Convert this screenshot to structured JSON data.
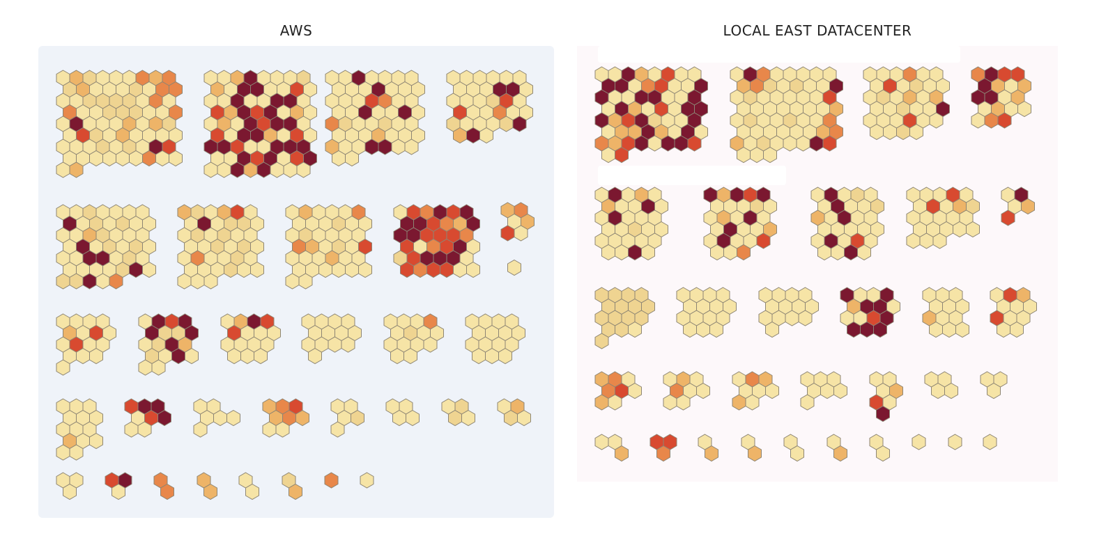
{
  "chart_data": [
    {
      "type": "heatmap",
      "title": "AWS",
      "palette": [
        "#f6e4a6",
        "#efd491",
        "#eeb468",
        "#e8874a",
        "#d84a30",
        "#7b1830"
      ],
      "clusters": [
        [
          "021000323",
          "120001033",
          "001111030",
          "300111003",
          "050002021",
          "041020000",
          "000101054",
          "000000300",
          "02"
        ],
        [
          "00250001",
          "20550040",
          "00500550",
          "42545020",
          "02054550",
          "40552040",
          "55400555",
          "00545045",
          "00525000"
        ],
        [
          "0050000",
          "0005000",
          "0004300",
          "0050050",
          "3100100",
          "0002000",
          "2005500",
          "00"
        ],
        [
          "000000",
          "000550",
          "000140",
          "400300",
          "100015",
          "250"
        ],
        [
          "0010000",
          "5010100",
          "0021000",
          "0501010",
          "0055010",
          "0000150",
          "11503"
        ],
        [
          "210240",
          "050110",
          "010100",
          "001010",
          "030010",
          "000100",
          "000"
        ],
        [
          "020003",
          "000100",
          "010000",
          "320104",
          "000200",
          "000000",
          "00"
        ],
        [
          "043545",
          "554325",
          "554443",
          "403450",
          "145550",
          "434400"
        ],
        [
          "23",
          "02",
          "40",
          "..",
          "..",
          "0"
        ],
        [
          "0000",
          "2040",
          "0400",
          "000",
          "0"
        ],
        [
          "0545",
          "5115",
          "0152",
          "1050",
          "00"
        ],
        [
          "0254",
          "4000",
          "0000",
          "000"
        ],
        [
          "0000",
          "0000",
          "0000",
          "0"
        ],
        [
          "0003",
          "0100",
          "0000",
          "00"
        ],
        [
          "0000",
          "0000",
          "0000",
          "000"
        ],
        [
          "000",
          "000",
          "000",
          "200",
          "00"
        ],
        [
          "455",
          "045",
          "00"
        ],
        [
          "00",
          "000",
          "0"
        ],
        [
          "234",
          "232",
          "00"
        ],
        [
          "00",
          "01",
          "0"
        ],
        [
          "00",
          "00"
        ],
        [
          "01",
          "10"
        ],
        [
          "02",
          "10"
        ],
        [
          "00",
          "0"
        ],
        [
          "45",
          "0"
        ],
        [
          "3",
          "3"
        ],
        [
          "2",
          "2"
        ],
        [
          "0",
          "0"
        ],
        [
          "1",
          "2"
        ],
        [
          "3"
        ],
        [
          "0"
        ]
      ]
    },
    {
      "type": "heatmap",
      "title": "LOCAL EAST DATACENTER",
      "palette": [
        "#f6e4a6",
        "#efd491",
        "#eeb468",
        "#e8874a",
        "#d84a30",
        "#7b1830"
      ],
      "clusters": [
        [
          "00520400",
          "55034005",
          "50055005",
          "05204055",
          "52451005",
          "02252050",
          "32450554",
          "04"
        ],
        [
          "05300000",
          "23101005",
          "01000004",
          "00000002",
          "01001003",
          "00000023",
          "20100054",
          "000"
        ],
        [
          "000300",
          "040100",
          "010202",
          "001005",
          "000400",
          "0010"
        ],
        [
          "3544",
          "5202",
          "5502",
          "0200",
          "034"
        ],
        [
          "05020",
          "20050",
          "05000",
          "00100",
          "00000",
          "0050"
        ],
        [
          "52545",
          "00010",
          "02050",
          "05002",
          "05004",
          "003"
        ],
        [
          "05010",
          "05001",
          "20500",
          "00000",
          "05040",
          "0050"
        ],
        [
          "00040",
          "04021",
          "00000",
          "00000",
          "000"
        ],
        [
          "05",
          "02",
          "4"
        ],
        [
          "1111",
          "1111",
          "1111",
          "110",
          "1"
        ],
        [
          "0000",
          "0000",
          "0000",
          "000"
        ],
        [
          "0000",
          "0000",
          "0000",
          "0"
        ],
        [
          "5005",
          "2550",
          "0045",
          "555"
        ],
        [
          "000",
          "000",
          "200",
          "000"
        ],
        [
          "042",
          "000",
          "400",
          "00"
        ],
        [
          "230",
          "340",
          "20"
        ],
        [
          "020",
          "300",
          "00"
        ],
        [
          "032",
          "000",
          "20"
        ],
        [
          "000",
          "000",
          "0"
        ],
        [
          "00",
          "02",
          "40",
          "5"
        ],
        [
          "00",
          "00"
        ],
        [
          "00",
          "0"
        ],
        [
          "00",
          ".2"
        ],
        [
          "44",
          "3"
        ],
        [
          "0",
          "2"
        ],
        [
          "0",
          "2"
        ],
        [
          "0",
          "0"
        ],
        [
          "0",
          "2"
        ],
        [
          "0",
          "0"
        ],
        [
          "0"
        ],
        [
          "0"
        ],
        [
          "0"
        ]
      ]
    }
  ]
}
